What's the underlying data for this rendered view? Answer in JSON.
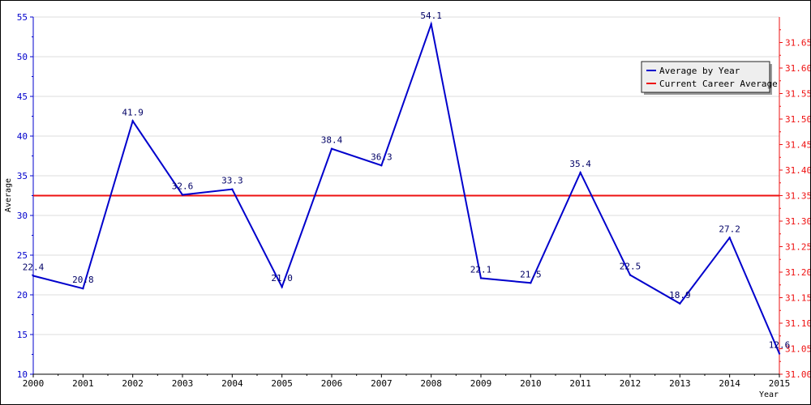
{
  "chart_data": {
    "type": "line",
    "title": "",
    "xlabel": "Year",
    "ylabel": "Average",
    "x": [
      "2000",
      "2001",
      "2002",
      "2003",
      "2004",
      "2005",
      "2006",
      "2007",
      "2008",
      "2009",
      "2010",
      "2011",
      "2012",
      "2013",
      "2014",
      "2015"
    ],
    "series": [
      {
        "name": "Average by Year",
        "axis": "left",
        "color": "#0000cc",
        "values": [
          22.4,
          20.8,
          41.9,
          32.6,
          33.3,
          21.0,
          38.4,
          36.3,
          54.1,
          22.1,
          21.5,
          35.4,
          22.5,
          18.9,
          27.2,
          12.6
        ],
        "labels": [
          "22.4",
          "20.8",
          "41.9",
          "32.6",
          "33.3",
          "21.0",
          "38.4",
          "36.3",
          "54.1",
          "22.1",
          "21.5",
          "35.4",
          "22.5",
          "18.9",
          "27.2",
          "12.6"
        ]
      },
      {
        "name": "Current Career Average",
        "axis": "right",
        "color": "#ee1111",
        "value": 31.35
      }
    ],
    "left_axis": {
      "ylim": [
        10,
        55
      ],
      "ticks": [
        "10",
        "15",
        "20",
        "25",
        "30",
        "35",
        "40",
        "45",
        "50",
        "55"
      ],
      "color": "#0000cc"
    },
    "right_axis": {
      "ylim": [
        31.0,
        31.7
      ],
      "ticks": [
        "31.00",
        "31.05",
        "31.10",
        "31.15",
        "31.20",
        "31.25",
        "31.30",
        "31.35",
        "31.40",
        "31.45",
        "31.50",
        "31.55",
        "31.60",
        "31.65"
      ],
      "color": "#ee1111"
    },
    "grid": true,
    "legend_position": "top-right",
    "axis_color": "#000000"
  }
}
